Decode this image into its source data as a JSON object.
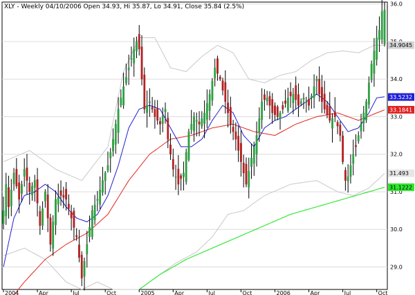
{
  "chart_data": {
    "type": "candlestick",
    "title": "XLY - Weekly 04/10/2006 Open 34.93, Hi 35.87, Lo 34.91, Close 35.84 (2.5%)",
    "y_ticks": [
      "29.0",
      "30.0",
      "31.0",
      "32.0",
      "33.0",
      "34.0",
      "35.0",
      "36.0"
    ],
    "ylim": [
      28.4,
      36.05
    ],
    "x_ticks": [
      {
        "label": "2004",
        "i": 0
      },
      {
        "label": "Apr",
        "i": 13
      },
      {
        "label": "Jul",
        "i": 26
      },
      {
        "label": "Oct",
        "i": 39
      },
      {
        "label": "2005",
        "i": 52
      },
      {
        "label": "Apr",
        "i": 65
      },
      {
        "label": "Jul",
        "i": 78
      },
      {
        "label": "Oct",
        "i": 91
      },
      {
        "label": "2006",
        "i": 104
      },
      {
        "label": "Apr",
        "i": 117
      },
      {
        "label": "Jul",
        "i": 130
      },
      {
        "label": "Oct",
        "i": 143
      }
    ],
    "n_bars": 147,
    "colors": {
      "up": "#2ea043",
      "down": "#b22222",
      "wick": "#000000",
      "ma_blue": "#1e1ed2",
      "ma_red": "#e0281e",
      "ma_green": "#38e838",
      "band": "#c8c8c8",
      "grid": "#dcdcdc"
    },
    "anchors": {
      "price": [
        [
          0,
          30.5
        ],
        [
          1,
          31.2
        ],
        [
          2,
          30.6
        ],
        [
          4,
          31.5
        ],
        [
          6,
          30.8
        ],
        [
          8,
          31.6
        ],
        [
          10,
          31.0
        ],
        [
          12,
          31.3
        ],
        [
          14,
          30.1
        ],
        [
          16,
          31.0
        ],
        [
          18,
          29.6
        ],
        [
          20,
          30.8
        ],
        [
          22,
          30.9
        ],
        [
          24,
          30.8
        ],
        [
          26,
          30.3
        ],
        [
          28,
          29.8
        ],
        [
          30,
          28.7
        ],
        [
          32,
          29.6
        ],
        [
          34,
          30.5
        ],
        [
          36,
          30.8
        ],
        [
          38,
          31.3
        ],
        [
          40,
          31.7
        ],
        [
          42,
          32.4
        ],
        [
          44,
          33.2
        ],
        [
          46,
          33.8
        ],
        [
          48,
          34.3
        ],
        [
          50,
          34.8
        ],
        [
          51,
          35.0
        ],
        [
          52,
          34.8
        ],
        [
          54,
          33.2
        ],
        [
          56,
          33.4
        ],
        [
          58,
          33.0
        ],
        [
          60,
          32.8
        ],
        [
          62,
          33.2
        ],
        [
          63,
          32.4
        ],
        [
          65,
          31.6
        ],
        [
          67,
          31.2
        ],
        [
          69,
          31.5
        ],
        [
          71,
          32.6
        ],
        [
          73,
          33.0
        ],
        [
          75,
          32.8
        ],
        [
          77,
          33.1
        ],
        [
          79,
          33.6
        ],
        [
          81,
          34.3
        ],
        [
          83,
          34.0
        ],
        [
          85,
          33.4
        ],
        [
          87,
          32.8
        ],
        [
          89,
          32.4
        ],
        [
          91,
          31.8
        ],
        [
          93,
          31.2
        ],
        [
          95,
          31.9
        ],
        [
          97,
          32.5
        ],
        [
          99,
          33.4
        ],
        [
          101,
          33.5
        ],
        [
          103,
          33.1
        ],
        [
          105,
          33.0
        ],
        [
          107,
          33.2
        ],
        [
          109,
          33.5
        ],
        [
          111,
          33.6
        ],
        [
          113,
          33.3
        ],
        [
          115,
          33.5
        ],
        [
          117,
          33.3
        ],
        [
          119,
          33.8
        ],
        [
          120,
          34.0
        ],
        [
          121,
          33.6
        ],
        [
          123,
          33.2
        ],
        [
          125,
          32.9
        ],
        [
          127,
          33.0
        ],
        [
          129,
          32.5
        ],
        [
          130,
          31.8
        ],
        [
          131,
          31.3
        ],
        [
          132,
          31.4
        ],
        [
          133,
          31.7
        ],
        [
          134,
          32.0
        ],
        [
          135,
          32.2
        ],
        [
          137,
          32.8
        ],
        [
          139,
          33.4
        ],
        [
          141,
          34.4
        ],
        [
          143,
          35.1
        ],
        [
          144,
          35.3
        ],
        [
          145,
          35.8
        ],
        [
          146,
          35.84
        ]
      ],
      "ma_blue": [
        [
          0,
          29.0
        ],
        [
          4,
          30.3
        ],
        [
          8,
          30.9
        ],
        [
          12,
          31.0
        ],
        [
          16,
          31.2
        ],
        [
          20,
          31.0
        ],
        [
          24,
          30.6
        ],
        [
          28,
          30.3
        ],
        [
          32,
          30.2
        ],
        [
          36,
          30.4
        ],
        [
          40,
          30.9
        ],
        [
          44,
          31.7
        ],
        [
          48,
          32.7
        ],
        [
          52,
          33.2
        ],
        [
          56,
          33.3
        ],
        [
          60,
          33.2
        ],
        [
          64,
          32.7
        ],
        [
          68,
          32.2
        ],
        [
          72,
          32.2
        ],
        [
          76,
          32.4
        ],
        [
          80,
          32.9
        ],
        [
          84,
          33.3
        ],
        [
          88,
          33.1
        ],
        [
          92,
          32.5
        ],
        [
          96,
          32.2
        ],
        [
          100,
          32.7
        ],
        [
          104,
          32.9
        ],
        [
          108,
          33.0
        ],
        [
          112,
          33.2
        ],
        [
          116,
          33.4
        ],
        [
          120,
          33.6
        ],
        [
          124,
          33.4
        ],
        [
          128,
          33.0
        ],
        [
          132,
          32.6
        ],
        [
          136,
          32.7
        ],
        [
          140,
          33.1
        ],
        [
          143,
          33.5
        ],
        [
          146,
          33.53
        ]
      ],
      "ma_red": [
        [
          0,
          27.9
        ],
        [
          8,
          28.6
        ],
        [
          16,
          29.2
        ],
        [
          24,
          29.6
        ],
        [
          32,
          29.9
        ],
        [
          40,
          30.4
        ],
        [
          48,
          31.3
        ],
        [
          56,
          32.0
        ],
        [
          64,
          32.4
        ],
        [
          72,
          32.5
        ],
        [
          80,
          32.7
        ],
        [
          88,
          32.8
        ],
        [
          96,
          32.6
        ],
        [
          104,
          32.5
        ],
        [
          112,
          32.8
        ],
        [
          120,
          33.0
        ],
        [
          128,
          33.1
        ],
        [
          136,
          32.9
        ],
        [
          143,
          33.1
        ],
        [
          146,
          33.18
        ]
      ],
      "ma_green": [
        [
          52,
          28.4
        ],
        [
          60,
          28.8
        ],
        [
          70,
          29.2
        ],
        [
          80,
          29.5
        ],
        [
          90,
          29.8
        ],
        [
          100,
          30.1
        ],
        [
          110,
          30.4
        ],
        [
          120,
          30.6
        ],
        [
          130,
          30.8
        ],
        [
          140,
          31.0
        ],
        [
          146,
          31.12
        ]
      ],
      "band_upper": [
        [
          0,
          31.8
        ],
        [
          10,
          32.1
        ],
        [
          20,
          31.6
        ],
        [
          30,
          31.3
        ],
        [
          40,
          32.2
        ],
        [
          46,
          34.2
        ],
        [
          52,
          35.1
        ],
        [
          58,
          35.1
        ],
        [
          64,
          34.3
        ],
        [
          70,
          34.2
        ],
        [
          76,
          34.6
        ],
        [
          82,
          34.9
        ],
        [
          88,
          34.7
        ],
        [
          94,
          34.0
        ],
        [
          100,
          33.9
        ],
        [
          106,
          34.1
        ],
        [
          112,
          34.2
        ],
        [
          118,
          34.5
        ],
        [
          124,
          34.7
        ],
        [
          130,
          34.75
        ],
        [
          136,
          34.7
        ],
        [
          142,
          34.9
        ],
        [
          146,
          34.9
        ]
      ],
      "band_lower": [
        [
          0,
          29.3
        ],
        [
          8,
          29.5
        ],
        [
          16,
          29.2
        ],
        [
          24,
          28.6
        ],
        [
          30,
          28.4
        ],
        [
          36,
          28.6
        ],
        [
          42,
          28.4
        ],
        [
          52,
          28.4
        ],
        [
          58,
          28.7
        ],
        [
          66,
          29.1
        ],
        [
          74,
          29.4
        ],
        [
          80,
          29.8
        ],
        [
          86,
          30.4
        ],
        [
          92,
          30.5
        ],
        [
          100,
          30.9
        ],
        [
          110,
          31.2
        ],
        [
          120,
          31.3
        ],
        [
          128,
          31.0
        ],
        [
          134,
          30.9
        ],
        [
          140,
          31.1
        ],
        [
          146,
          31.49
        ]
      ]
    },
    "value_badges": [
      {
        "text": "34.9045",
        "value": 34.9045,
        "bg": "#d4d4d4",
        "fg": "#000000"
      },
      {
        "text": "33.5232",
        "value": 33.5232,
        "bg": "#1f1fd6",
        "fg": "#ffffff"
      },
      {
        "text": "33.1841",
        "value": 33.1841,
        "bg": "#e02020",
        "fg": "#ffffff"
      },
      {
        "text": "31.493",
        "value": 31.493,
        "bg": "#e6e6e6",
        "fg": "#000000"
      },
      {
        "text": "31.1222",
        "value": 31.1222,
        "bg": "#2ee82e",
        "fg": "#000000"
      }
    ]
  }
}
